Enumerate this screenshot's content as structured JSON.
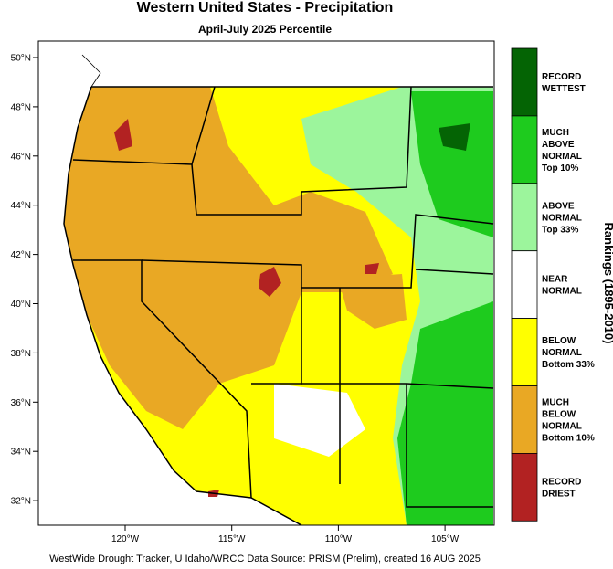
{
  "header": {
    "title": "Western United States - Precipitation",
    "subtitle": "April-July 2025 Percentile"
  },
  "map": {
    "latitude_labels": [
      "50°N",
      "48°N",
      "46°N",
      "44°N",
      "42°N",
      "40°N",
      "38°N",
      "36°N",
      "34°N",
      "32°N"
    ],
    "longitude_labels": [
      "120°W",
      "115°W",
      "110°W",
      "105°W"
    ]
  },
  "legend": {
    "title": "Rankings (1895-2010)",
    "entries": [
      {
        "color": "#046404",
        "lines": [
          "RECORD",
          "WETTEST"
        ]
      },
      {
        "color": "#1ecb1e",
        "lines": [
          "MUCH",
          "ABOVE",
          "NORMAL",
          "Top 10%"
        ]
      },
      {
        "color": "#9cf59c",
        "lines": [
          "ABOVE",
          "NORMAL",
          "Top 33%"
        ]
      },
      {
        "color": "#ffffff",
        "lines": [
          "NEAR",
          "NORMAL"
        ]
      },
      {
        "color": "#ffff00",
        "lines": [
          "BELOW",
          "NORMAL",
          "Bottom 33%"
        ]
      },
      {
        "color": "#e9a824",
        "lines": [
          "MUCH",
          "BELOW",
          "NORMAL",
          "Bottom 10%"
        ]
      },
      {
        "color": "#b22222",
        "lines": [
          "RECORD",
          "DRIEST"
        ]
      }
    ]
  },
  "footer": "WestWide Drought Tracker, U Idaho/WRCC Data Source: PRISM (Prelim), created 16 AUG 2025"
}
